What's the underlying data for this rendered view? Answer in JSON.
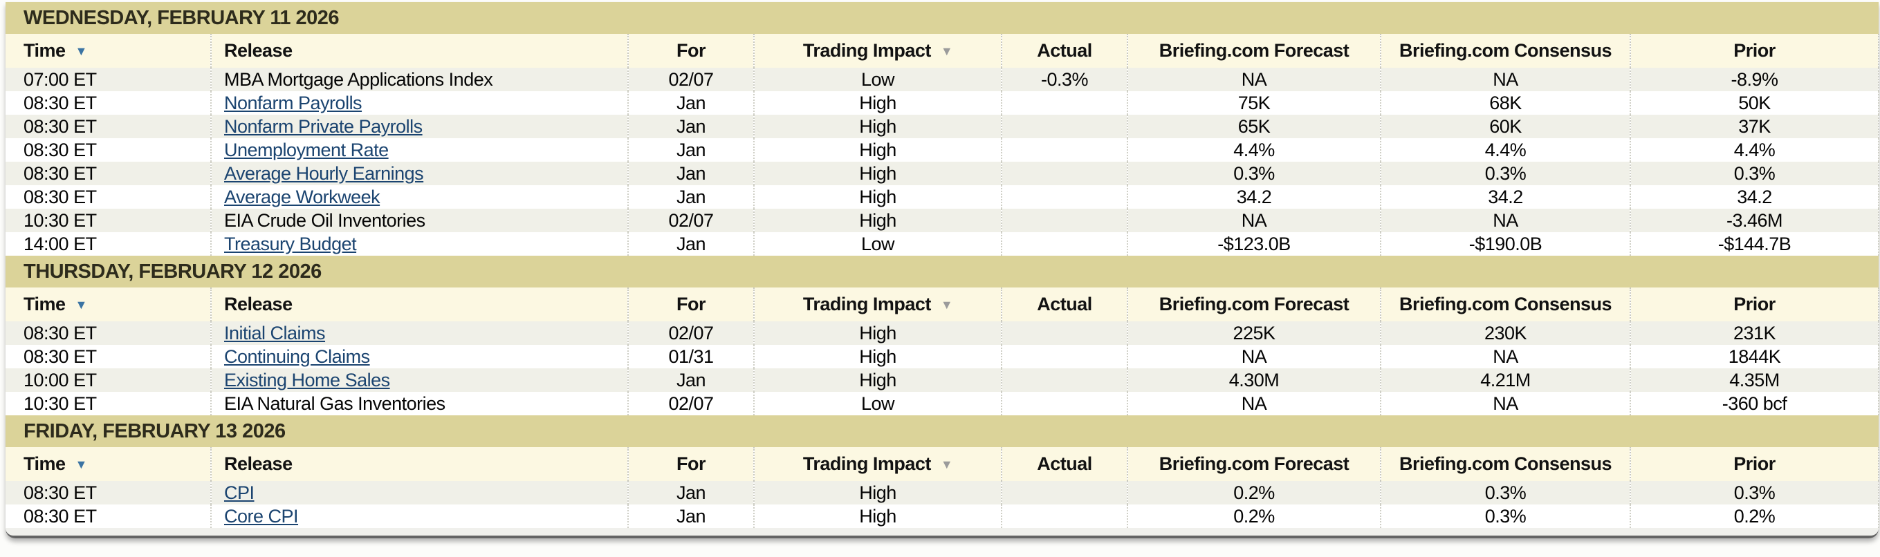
{
  "table": {
    "columns": [
      {
        "id": "time",
        "label": "Time",
        "align": "left",
        "sortable": true,
        "sort_arrow": "blue"
      },
      {
        "id": "release",
        "label": "Release",
        "align": "left",
        "sortable": false,
        "sort_arrow": null
      },
      {
        "id": "for",
        "label": "For",
        "align": "center",
        "sortable": false,
        "sort_arrow": null
      },
      {
        "id": "impact",
        "label": "Trading Impact",
        "align": "center",
        "sortable": true,
        "sort_arrow": "gray"
      },
      {
        "id": "actual",
        "label": "Actual",
        "align": "center",
        "sortable": false,
        "sort_arrow": null
      },
      {
        "id": "forecast",
        "label": "Briefing.com Forecast",
        "align": "center",
        "sortable": false,
        "sort_arrow": null
      },
      {
        "id": "consensus",
        "label": "Briefing.com Consensus",
        "align": "center",
        "sortable": false,
        "sort_arrow": null
      },
      {
        "id": "prior",
        "label": "Prior",
        "align": "center",
        "sortable": false,
        "sort_arrow": null
      }
    ],
    "sections": [
      {
        "day_header": "WEDNESDAY, FEBRUARY 11 2026",
        "rows": [
          {
            "time": "07:00 ET",
            "release": "MBA Mortgage Applications Index",
            "is_link": false,
            "for": "02/07",
            "impact": "Low",
            "actual": "-0.3%",
            "forecast": "NA",
            "consensus": "NA",
            "prior": "-8.9%"
          },
          {
            "time": "08:30 ET",
            "release": "Nonfarm Payrolls",
            "is_link": true,
            "for": "Jan",
            "impact": "High",
            "actual": "",
            "forecast": "75K",
            "consensus": "68K",
            "prior": "50K"
          },
          {
            "time": "08:30 ET",
            "release": "Nonfarm Private Payrolls",
            "is_link": true,
            "for": "Jan",
            "impact": "High",
            "actual": "",
            "forecast": "65K",
            "consensus": "60K",
            "prior": "37K"
          },
          {
            "time": "08:30 ET",
            "release": "Unemployment Rate",
            "is_link": true,
            "for": "Jan",
            "impact": "High",
            "actual": "",
            "forecast": "4.4%",
            "consensus": "4.4%",
            "prior": "4.4%"
          },
          {
            "time": "08:30 ET",
            "release": "Average Hourly Earnings",
            "is_link": true,
            "for": "Jan",
            "impact": "High",
            "actual": "",
            "forecast": "0.3%",
            "consensus": "0.3%",
            "prior": "0.3%"
          },
          {
            "time": "08:30 ET",
            "release": "Average Workweek",
            "is_link": true,
            "for": "Jan",
            "impact": "High",
            "actual": "",
            "forecast": "34.2",
            "consensus": "34.2",
            "prior": "34.2"
          },
          {
            "time": "10:30 ET",
            "release": "EIA Crude Oil Inventories",
            "is_link": false,
            "for": "02/07",
            "impact": "High",
            "actual": "",
            "forecast": "NA",
            "consensus": "NA",
            "prior": "-3.46M"
          },
          {
            "time": "14:00 ET",
            "release": "Treasury Budget",
            "is_link": true,
            "for": "Jan",
            "impact": "Low",
            "actual": "",
            "forecast": "-$123.0B",
            "consensus": "-$190.0B",
            "prior": "-$144.7B"
          }
        ]
      },
      {
        "day_header": "THURSDAY, FEBRUARY 12 2026",
        "rows": [
          {
            "time": "08:30 ET",
            "release": "Initial Claims",
            "is_link": true,
            "for": "02/07",
            "impact": "High",
            "actual": "",
            "forecast": "225K",
            "consensus": "230K",
            "prior": "231K"
          },
          {
            "time": "08:30 ET",
            "release": "Continuing Claims",
            "is_link": true,
            "for": "01/31",
            "impact": "High",
            "actual": "",
            "forecast": "NA",
            "consensus": "NA",
            "prior": "1844K"
          },
          {
            "time": "10:00 ET",
            "release": "Existing Home Sales",
            "is_link": true,
            "for": "Jan",
            "impact": "High",
            "actual": "",
            "forecast": "4.30M",
            "consensus": "4.21M",
            "prior": "4.35M"
          },
          {
            "time": "10:30 ET",
            "release": "EIA Natural Gas Inventories",
            "is_link": false,
            "for": "02/07",
            "impact": "Low",
            "actual": "",
            "forecast": "NA",
            "consensus": "NA",
            "prior": "-360 bcf"
          }
        ]
      },
      {
        "day_header": "FRIDAY, FEBRUARY 13 2026",
        "rows": [
          {
            "time": "08:30 ET",
            "release": "CPI",
            "is_link": true,
            "for": "Jan",
            "impact": "High",
            "actual": "",
            "forecast": "0.2%",
            "consensus": "0.3%",
            "prior": "0.3%"
          },
          {
            "time": "08:30 ET",
            "release": "Core CPI",
            "is_link": true,
            "for": "Jan",
            "impact": "High",
            "actual": "",
            "forecast": "0.2%",
            "consensus": "0.3%",
            "prior": "0.2%"
          }
        ]
      }
    ]
  },
  "colors": {
    "day_band_bg": "#dbd399",
    "header_row_bg": "#fcf8e2",
    "row_bg": "#ffffff",
    "row_alt_bg": "#f0f0e8",
    "link": "#1b4470",
    "sort_arrow_blue": "#3b74a3",
    "sort_arrow_gray": "#9b9b9b"
  }
}
